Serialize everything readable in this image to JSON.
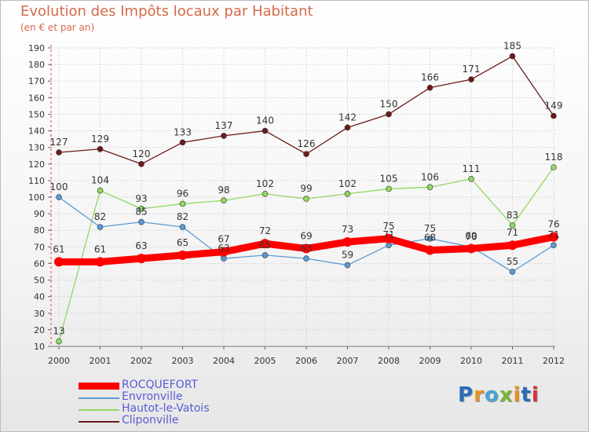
{
  "title": "Evolution des Impôts locaux par Habitant",
  "subtitle": "(en € et par an)",
  "logo": {
    "text": "Proxiti",
    "colors": [
      "#2a6db8",
      "#e8901c",
      "#4aa3d8",
      "#7ab63a",
      "#e8901c",
      "#2a6db8",
      "#d8303a"
    ]
  },
  "chart_data": {
    "type": "line",
    "title": "Evolution des Impôts locaux par Habitant",
    "subtitle": "(en € et par an)",
    "xlabel": "",
    "ylabel": "",
    "x": [
      "2000",
      "2001",
      "2002",
      "2003",
      "2004",
      "2005",
      "2006",
      "2007",
      "2008",
      "2009",
      "2010",
      "2011",
      "2012"
    ],
    "yticks": [
      10,
      20,
      30,
      40,
      50,
      60,
      70,
      80,
      90,
      100,
      110,
      120,
      130,
      140,
      150,
      160,
      170,
      180,
      190
    ],
    "ylim": [
      10,
      190
    ],
    "grid": true,
    "legend_position": "bottom-left",
    "series": [
      {
        "name": "Cliponville",
        "color": "#6e1a1a",
        "values": [
          127,
          129,
          120,
          133,
          137,
          140,
          126,
          142,
          150,
          166,
          171,
          185,
          149
        ]
      },
      {
        "name": "Hautot-le-Vatois",
        "color": "#8fd860",
        "values": [
          13,
          104,
          93,
          96,
          98,
          102,
          99,
          102,
          105,
          106,
          111,
          83,
          118
        ]
      },
      {
        "name": "Envronville",
        "color": "#5a9ad6",
        "values": [
          100,
          82,
          85,
          82,
          63,
          65,
          63,
          59,
          71,
          75,
          70,
          55,
          71
        ]
      },
      {
        "name": "ROCQUEFORT",
        "color": "#ff0000",
        "values": [
          61,
          61,
          63,
          65,
          67,
          72,
          69,
          73,
          75,
          68,
          69,
          71,
          76
        ]
      }
    ],
    "legend": [
      "ROCQUEFORT",
      "Envronville",
      "Hautot-le-Vatois",
      "Cliponville"
    ]
  }
}
